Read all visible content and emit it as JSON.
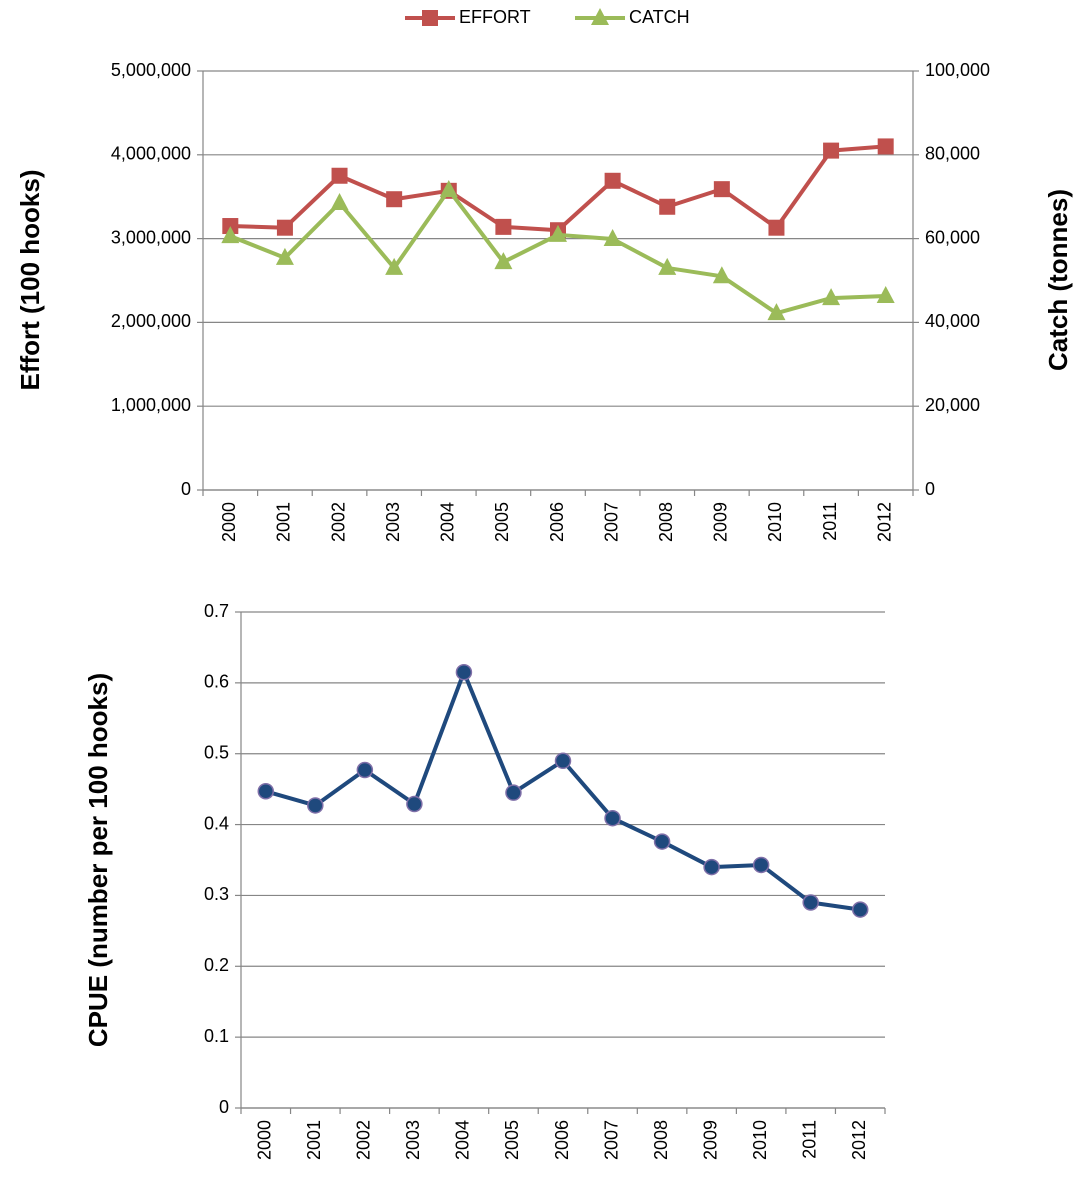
{
  "chart_data": [
    {
      "type": "line",
      "y_label": "Effort (100 hooks)",
      "y2_label": "Catch (tonnes)",
      "categories": [
        "2000",
        "2001",
        "2002",
        "2003",
        "2004",
        "2005",
        "2006",
        "2007",
        "2008",
        "2009",
        "2010",
        "2011",
        "2012"
      ],
      "series": [
        {
          "name": "EFFORT",
          "color": "#c0504d",
          "marker": "square",
          "values": [
            3150000,
            3130000,
            3750000,
            3470000,
            3570000,
            3140000,
            3100000,
            3690000,
            3380000,
            3590000,
            3130000,
            4050000,
            4100000
          ]
        },
        {
          "name": "CATCH",
          "color": "#9bbb59",
          "marker": "triangle",
          "axis": "y2",
          "values": [
            60600,
            55400,
            68500,
            53000,
            71600,
            54400,
            60900,
            59900,
            53000,
            51000,
            42200,
            45800,
            46300
          ]
        }
      ],
      "ylim": [
        0,
        5000000
      ],
      "yticks": [
        0,
        {
          "value": 1000000,
          "label": "1,000,000"
        },
        {
          "value": 2000000,
          "label": "2,000,000"
        },
        {
          "value": 3000000,
          "label": "3,000,000"
        },
        {
          "value": 4000000,
          "label": "4,000,000"
        },
        {
          "value": 5000000,
          "label": "5,000,000"
        }
      ],
      "y2lim": [
        0,
        100000
      ],
      "y2ticks": [
        0,
        {
          "value": 20000,
          "label": "20,000"
        },
        {
          "value": 40000,
          "label": "40,000"
        },
        {
          "value": 60000,
          "label": "60,000"
        },
        {
          "value": 80000,
          "label": "80,000"
        },
        {
          "value": 100000,
          "label": "100,000"
        }
      ],
      "grid": true,
      "legend": "top"
    },
    {
      "type": "line",
      "y_label": "CPUE (number per 100 hooks)",
      "categories": [
        "2000",
        "2001",
        "2002",
        "2003",
        "2004",
        "2005",
        "2006",
        "2007",
        "2008",
        "2009",
        "2010",
        "2011",
        "2012"
      ],
      "series": [
        {
          "name": "CPUE",
          "color": "#1f497d",
          "marker": "circle",
          "values": [
            0.447,
            0.427,
            0.477,
            0.429,
            0.615,
            0.445,
            0.49,
            0.409,
            0.376,
            0.34,
            0.343,
            0.29,
            0.28
          ]
        }
      ],
      "ylim": [
        0,
        0.7
      ],
      "yticks": [
        0,
        0.1,
        0.2,
        0.3,
        0.4,
        0.5,
        0.6,
        0.7
      ],
      "grid": true
    }
  ]
}
